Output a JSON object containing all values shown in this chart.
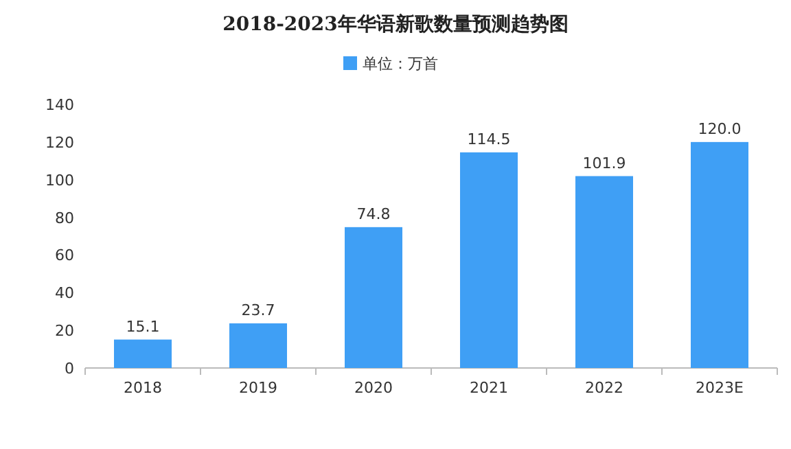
{
  "chart_data": {
    "type": "bar",
    "title": "2018-2023年华语新歌数量预测趋势图",
    "categories": [
      "2018",
      "2019",
      "2020",
      "2021",
      "2022",
      "2023E"
    ],
    "series": [
      {
        "name": "单位：万首",
        "color": "#3f9ff5",
        "values": [
          15.1,
          23.7,
          74.8,
          114.5,
          101.9,
          120.0
        ],
        "value_labels": [
          "15.1",
          "23.7",
          "74.8",
          "114.5",
          "101.9",
          "120.0"
        ]
      }
    ],
    "ylim": [
      0,
      140
    ],
    "yticks": [
      0,
      20,
      40,
      60,
      80,
      100,
      120,
      140
    ],
    "legend": "top",
    "grid": false
  }
}
